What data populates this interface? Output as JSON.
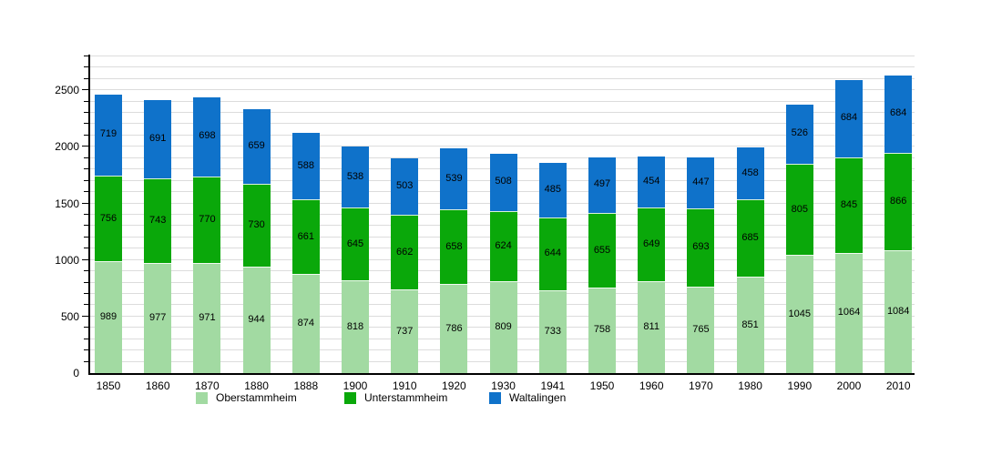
{
  "chart_data": {
    "type": "bar",
    "stacked": true,
    "title": "",
    "xlabel": "",
    "ylabel": "",
    "categories": [
      "1850",
      "1860",
      "1870",
      "1880",
      "1888",
      "1900",
      "1910",
      "1920",
      "1930",
      "1941",
      "1950",
      "1960",
      "1970",
      "1980",
      "1990",
      "2000",
      "2010"
    ],
    "series": [
      {
        "name": "Oberstammheim",
        "color": "#a2daa2",
        "values": [
          989,
          977,
          971,
          944,
          874,
          818,
          737,
          786,
          809,
          733,
          758,
          811,
          765,
          851,
          1045,
          1064,
          1084
        ]
      },
      {
        "name": "Unterstammheim",
        "color": "#0aa80a",
        "values": [
          756,
          743,
          770,
          730,
          661,
          645,
          662,
          658,
          624,
          644,
          655,
          649,
          693,
          685,
          805,
          845,
          866
        ]
      },
      {
        "name": "Waltalingen",
        "color": "#0f72ca",
        "values": [
          719,
          691,
          698,
          659,
          588,
          538,
          503,
          539,
          508,
          485,
          497,
          454,
          447,
          458,
          526,
          684,
          684
        ]
      }
    ],
    "ylim": [
      0,
      2815
    ],
    "yticks": [
      0,
      500,
      1000,
      1500,
      2000,
      2500
    ],
    "minor_grid_step": 100,
    "minor_grid_max": 2800,
    "grid": true,
    "bar_value_labels": true,
    "legend_position": "bottom"
  },
  "style": {
    "axis_color": "#000000",
    "gridline_color": "#dcdcdc",
    "background_color": "#ffffff",
    "label_text_color": "#000000"
  }
}
